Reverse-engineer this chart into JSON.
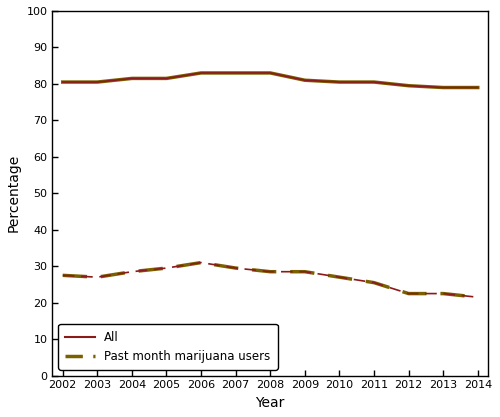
{
  "years": [
    2002,
    2003,
    2004,
    2005,
    2006,
    2007,
    2008,
    2009,
    2010,
    2011,
    2012,
    2013,
    2014
  ],
  "all_persons": [
    80.5,
    80.5,
    81.5,
    81.5,
    83.0,
    83.0,
    83.0,
    81.0,
    80.5,
    80.5,
    79.5,
    79.0,
    79.0
  ],
  "past_month_users": [
    27.5,
    27.0,
    28.5,
    29.5,
    31.0,
    29.5,
    28.5,
    28.5,
    27.0,
    25.5,
    22.5,
    22.5,
    21.5
  ],
  "all_color_solid": "#8B1A1A",
  "all_color_dashed": "#7B6000",
  "xlabel": "Year",
  "ylabel": "Percentage",
  "ylim": [
    0,
    100
  ],
  "yticks": [
    0,
    10,
    20,
    30,
    40,
    50,
    60,
    70,
    80,
    90,
    100
  ],
  "legend_all": "All",
  "legend_past": "Past month marijuana users",
  "background_color": "#ffffff",
  "tick_fontsize": 8,
  "label_fontsize": 10
}
